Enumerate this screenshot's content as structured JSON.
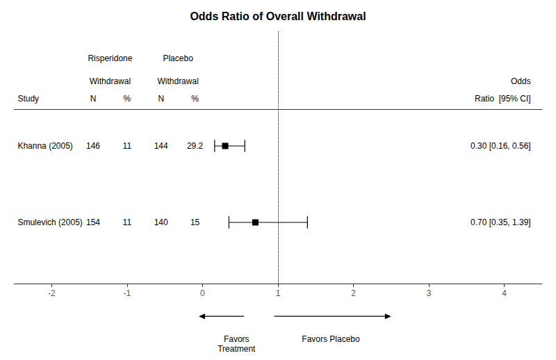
{
  "chart_data": {
    "type": "forest",
    "title": "Odds Ratio of Overall Withdrawal",
    "category_header": "Study",
    "categories": [
      "Khanna (2005)",
      "Smulevich (2005)"
    ],
    "values": [
      0.3,
      0.7
    ],
    "ci_low": [
      0.16,
      0.35
    ],
    "ci_high": [
      0.56,
      1.39
    ],
    "value_labels": [
      "0.30 [0.16, 0.56]",
      "0.70 [0.35, 1.39]"
    ],
    "value_labels_header": [
      "Odds",
      "Ratio  [95% CI]"
    ],
    "table": [
      {
        "group": [
          "Risperidone",
          "Withdrawal"
        ],
        "columns": [
          {
            "name": "N",
            "values": [
              146,
              154
            ]
          },
          {
            "name": "%",
            "values": [
              11,
              11
            ]
          }
        ]
      },
      {
        "group": [
          "Placebo",
          "Withdrawal"
        ],
        "columns": [
          {
            "name": "N",
            "values": [
              144,
              140
            ]
          },
          {
            "name": "%",
            "values": [
              29.2,
              15
            ]
          }
        ]
      }
    ],
    "reference_line": 1.0,
    "xlim": [
      -2.5,
      4.5
    ],
    "xticks": [
      -2,
      -1,
      0,
      1,
      2,
      3,
      4
    ],
    "annotations": [
      "Favors\nTreatment",
      "Favors Placebo"
    ],
    "marker": "square",
    "color": "#000000",
    "grid": false,
    "tick_labels": "x"
  }
}
